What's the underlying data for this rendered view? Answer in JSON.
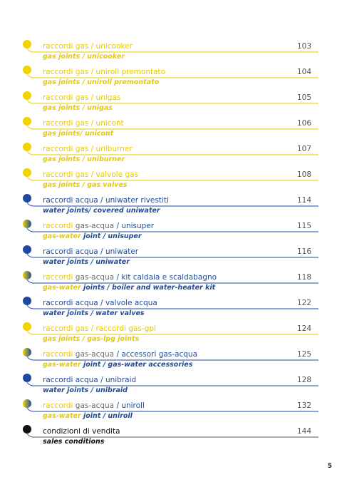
{
  "entries": [
    {
      "kind": "gas",
      "title_parts": [
        "raccordi gas / unicooker"
      ],
      "subtitle_parts": [
        "gas joints / unicooker"
      ],
      "page": "103"
    },
    {
      "kind": "gas",
      "title_parts": [
        "raccordi gas / uniroll premontato"
      ],
      "subtitle_parts": [
        "gas joints / uniroll premontato"
      ],
      "page": "104"
    },
    {
      "kind": "gas",
      "title_parts": [
        "raccordi gas / unigas"
      ],
      "subtitle_parts": [
        "gas joints / unigas"
      ],
      "page": "105"
    },
    {
      "kind": "gas",
      "title_parts": [
        "raccordi gas / unicont"
      ],
      "subtitle_parts": [
        "gas joints/ unicont"
      ],
      "page": "106"
    },
    {
      "kind": "gas",
      "title_parts": [
        "raccordi gas / uniburner"
      ],
      "subtitle_parts": [
        "gas joints / uniburner"
      ],
      "page": "107"
    },
    {
      "kind": "gas",
      "title_parts": [
        "raccordi gas / valvole gas"
      ],
      "subtitle_parts": [
        "gas joints / gas valves"
      ],
      "page": "108"
    },
    {
      "kind": "water",
      "title_parts": [
        "raccordi acqua / uniwater rivestiti"
      ],
      "subtitle_parts": [
        "water joints/ covered uniwater"
      ],
      "page": "114"
    },
    {
      "kind": "mixed",
      "title_parts": [
        "raccordi",
        " gas-acqua",
        " / unisuper"
      ],
      "subtitle_parts": [
        "gas-water",
        " joint",
        " / unisuper"
      ],
      "page": "115"
    },
    {
      "kind": "water",
      "title_parts": [
        "raccordi acqua / uniwater"
      ],
      "subtitle_parts": [
        "water joints / uniwater"
      ],
      "page": "116"
    },
    {
      "kind": "mixed",
      "title_parts": [
        "raccordi",
        " gas-acqua",
        " / kit caldaia e scaldabagno"
      ],
      "subtitle_parts": [
        "gas-water",
        " joints",
        " / boiler and water-heater kit"
      ],
      "page": "118"
    },
    {
      "kind": "water",
      "title_parts": [
        "raccordi acqua / valvole acqua"
      ],
      "subtitle_parts": [
        "water joints / water valves"
      ],
      "page": "122"
    },
    {
      "kind": "gas",
      "title_parts": [
        "raccordi gas / raccordi gas-gpl"
      ],
      "subtitle_parts": [
        "gas joints / gas-lpg joints"
      ],
      "page": "124"
    },
    {
      "kind": "mixed",
      "title_parts": [
        "raccordi",
        " gas-acqua",
        " / accessori gas-acqua"
      ],
      "subtitle_parts": [
        "gas-water",
        " joint",
        " / gas-water accessories"
      ],
      "page": "125"
    },
    {
      "kind": "water",
      "title_parts": [
        "raccordi acqua / unibraid"
      ],
      "subtitle_parts": [
        "water joints / unibraid"
      ],
      "page": "128"
    },
    {
      "kind": "mixed",
      "title_parts": [
        "raccordi",
        " gas-acqua",
        " / uniroll"
      ],
      "subtitle_parts": [
        "gas-water",
        " joint",
        " / uniroll"
      ],
      "page": "132"
    },
    {
      "kind": "other",
      "title_parts": [
        "condizioni di vendita"
      ],
      "subtitle_parts": [
        "sales conditions"
      ],
      "page": "144"
    }
  ],
  "page_number": "5"
}
